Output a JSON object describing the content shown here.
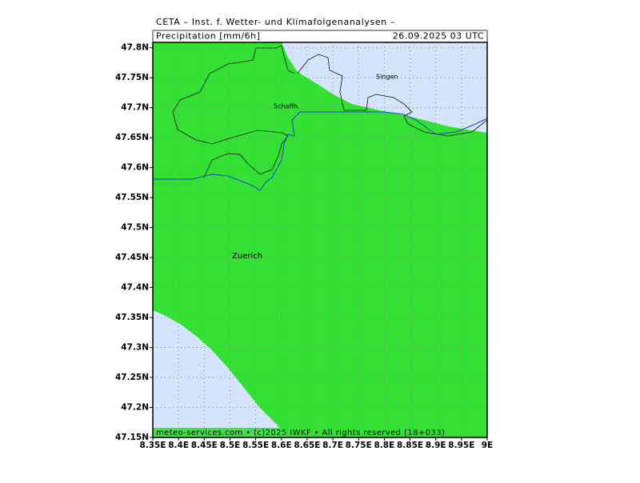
{
  "header": {
    "title": "CETA – Inst. f. Wetter- und Klimafolgenanalysen –",
    "variable": "Precipitation [mm/6h]",
    "date": "26.09.2025 03 UTC"
  },
  "map": {
    "xlim": [
      8.35,
      9.0
    ],
    "ylim": [
      47.15,
      47.809
    ],
    "xticks": [
      {
        "value": 8.35,
        "label": "8.35E"
      },
      {
        "value": 8.4,
        "label": "8.4E"
      },
      {
        "value": 8.45,
        "label": "8.45E"
      },
      {
        "value": 8.5,
        "label": "8.5E"
      },
      {
        "value": 8.55,
        "label": "8.55E"
      },
      {
        "value": 8.6,
        "label": "8.6E"
      },
      {
        "value": 8.65,
        "label": "8.65E"
      },
      {
        "value": 8.7,
        "label": "8.7E"
      },
      {
        "value": 8.75,
        "label": "8.75E"
      },
      {
        "value": 8.8,
        "label": "8.8E"
      },
      {
        "value": 8.85,
        "label": "8.85E"
      },
      {
        "value": 8.9,
        "label": "8.9E"
      },
      {
        "value": 8.95,
        "label": "8.95E"
      },
      {
        "value": 9.0,
        "label": "9E"
      }
    ],
    "yticks": [
      {
        "value": 47.15,
        "label": "47.15N"
      },
      {
        "value": 47.2,
        "label": "47.2N"
      },
      {
        "value": 47.25,
        "label": "47.25N"
      },
      {
        "value": 47.3,
        "label": "47.3N"
      },
      {
        "value": 47.35,
        "label": "47.35N"
      },
      {
        "value": 47.4,
        "label": "47.4N"
      },
      {
        "value": 47.45,
        "label": "47.45N"
      },
      {
        "value": 47.5,
        "label": "47.5N"
      },
      {
        "value": 47.55,
        "label": "47.55N"
      },
      {
        "value": 47.6,
        "label": "47.6N"
      },
      {
        "value": 47.65,
        "label": "47.65N"
      },
      {
        "value": 47.7,
        "label": "47.7N"
      },
      {
        "value": 47.75,
        "label": "47.75N"
      },
      {
        "value": 47.8,
        "label": "47.8N"
      }
    ],
    "places": [
      "Singen",
      "Schaffh.",
      "Zuerich"
    ]
  },
  "footer": "meteo-services.com • (c)2025 IWKF • All rights reserved (18+033)"
}
